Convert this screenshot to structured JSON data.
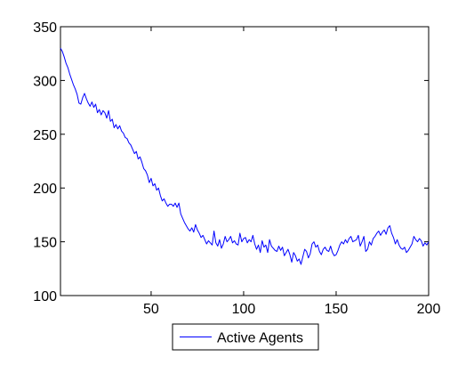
{
  "chart_data": {
    "type": "line",
    "title": "",
    "xlabel": "",
    "ylabel": "",
    "xlim": [
      1,
      200
    ],
    "ylim": [
      100,
      350
    ],
    "xticks": [
      50,
      100,
      150,
      200
    ],
    "yticks": [
      100,
      150,
      200,
      250,
      300,
      350
    ],
    "grid": false,
    "legend_placement": "bottom-center, outside axes",
    "series": [
      {
        "name": "Active Agents",
        "color": "#0000ff",
        "x": [
          1,
          2,
          3,
          4,
          5,
          6,
          7,
          8,
          9,
          10,
          11,
          12,
          13,
          14,
          15,
          16,
          17,
          18,
          19,
          20,
          21,
          22,
          23,
          24,
          25,
          26,
          27,
          28,
          29,
          30,
          31,
          32,
          33,
          34,
          35,
          36,
          37,
          38,
          39,
          40,
          41,
          42,
          43,
          44,
          45,
          46,
          47,
          48,
          49,
          50,
          51,
          52,
          53,
          54,
          55,
          56,
          57,
          58,
          59,
          60,
          61,
          62,
          63,
          64,
          65,
          66,
          67,
          68,
          69,
          70,
          71,
          72,
          73,
          74,
          75,
          76,
          77,
          78,
          79,
          80,
          81,
          82,
          83,
          84,
          85,
          86,
          87,
          88,
          89,
          90,
          91,
          92,
          93,
          94,
          95,
          96,
          97,
          98,
          99,
          100,
          101,
          102,
          103,
          104,
          105,
          106,
          107,
          108,
          109,
          110,
          111,
          112,
          113,
          114,
          115,
          116,
          117,
          118,
          119,
          120,
          121,
          122,
          123,
          124,
          125,
          126,
          127,
          128,
          129,
          130,
          131,
          132,
          133,
          134,
          135,
          136,
          137,
          138,
          139,
          140,
          141,
          142,
          143,
          144,
          145,
          146,
          147,
          148,
          149,
          150,
          151,
          152,
          153,
          154,
          155,
          156,
          157,
          158,
          159,
          160,
          161,
          162,
          163,
          164,
          165,
          166,
          167,
          168,
          169,
          170,
          171,
          172,
          173,
          174,
          175,
          176,
          177,
          178,
          179,
          180,
          181,
          182,
          183,
          184,
          185,
          186,
          187,
          188,
          189,
          190,
          191,
          192,
          193,
          194,
          195,
          196,
          197,
          198,
          199,
          200
        ],
        "y": [
          330,
          327,
          322,
          316,
          312,
          306,
          301,
          296,
          292,
          287,
          279,
          278,
          284,
          288,
          283,
          279,
          276,
          280,
          275,
          278,
          270,
          273,
          268,
          272,
          270,
          265,
          272,
          262,
          264,
          256,
          259,
          255,
          258,
          253,
          251,
          247,
          246,
          242,
          240,
          236,
          232,
          234,
          227,
          229,
          224,
          218,
          216,
          212,
          205,
          209,
          202,
          204,
          198,
          200,
          193,
          188,
          190,
          186,
          183,
          185,
          185,
          183,
          186,
          182,
          186,
          176,
          172,
          168,
          165,
          162,
          160,
          163,
          159,
          166,
          161,
          158,
          154,
          156,
          152,
          148,
          151,
          149,
          147,
          160,
          149,
          146,
          152,
          144,
          148,
          155,
          150,
          152,
          155,
          149,
          151,
          148,
          147,
          158,
          150,
          153,
          154,
          149,
          152,
          150,
          156,
          148,
          143,
          147,
          140,
          151,
          145,
          147,
          140,
          152,
          146,
          144,
          142,
          141,
          146,
          142,
          145,
          137,
          140,
          143,
          138,
          131,
          140,
          137,
          132,
          134,
          129,
          136,
          143,
          141,
          135,
          139,
          148,
          150,
          145,
          147,
          141,
          138,
          143,
          145,
          142,
          141,
          146,
          140,
          137,
          138,
          142,
          147,
          150,
          148,
          152,
          149,
          153,
          155,
          150,
          151,
          152,
          156,
          146,
          150,
          155,
          141,
          143,
          150,
          147,
          153,
          155,
          158,
          160,
          156,
          159,
          161,
          157,
          163,
          165,
          158,
          154,
          148,
          152,
          147,
          144,
          143,
          145,
          140,
          142,
          145,
          148,
          155,
          152,
          150,
          153,
          151,
          146,
          149,
          147,
          150
        ]
      }
    ]
  }
}
